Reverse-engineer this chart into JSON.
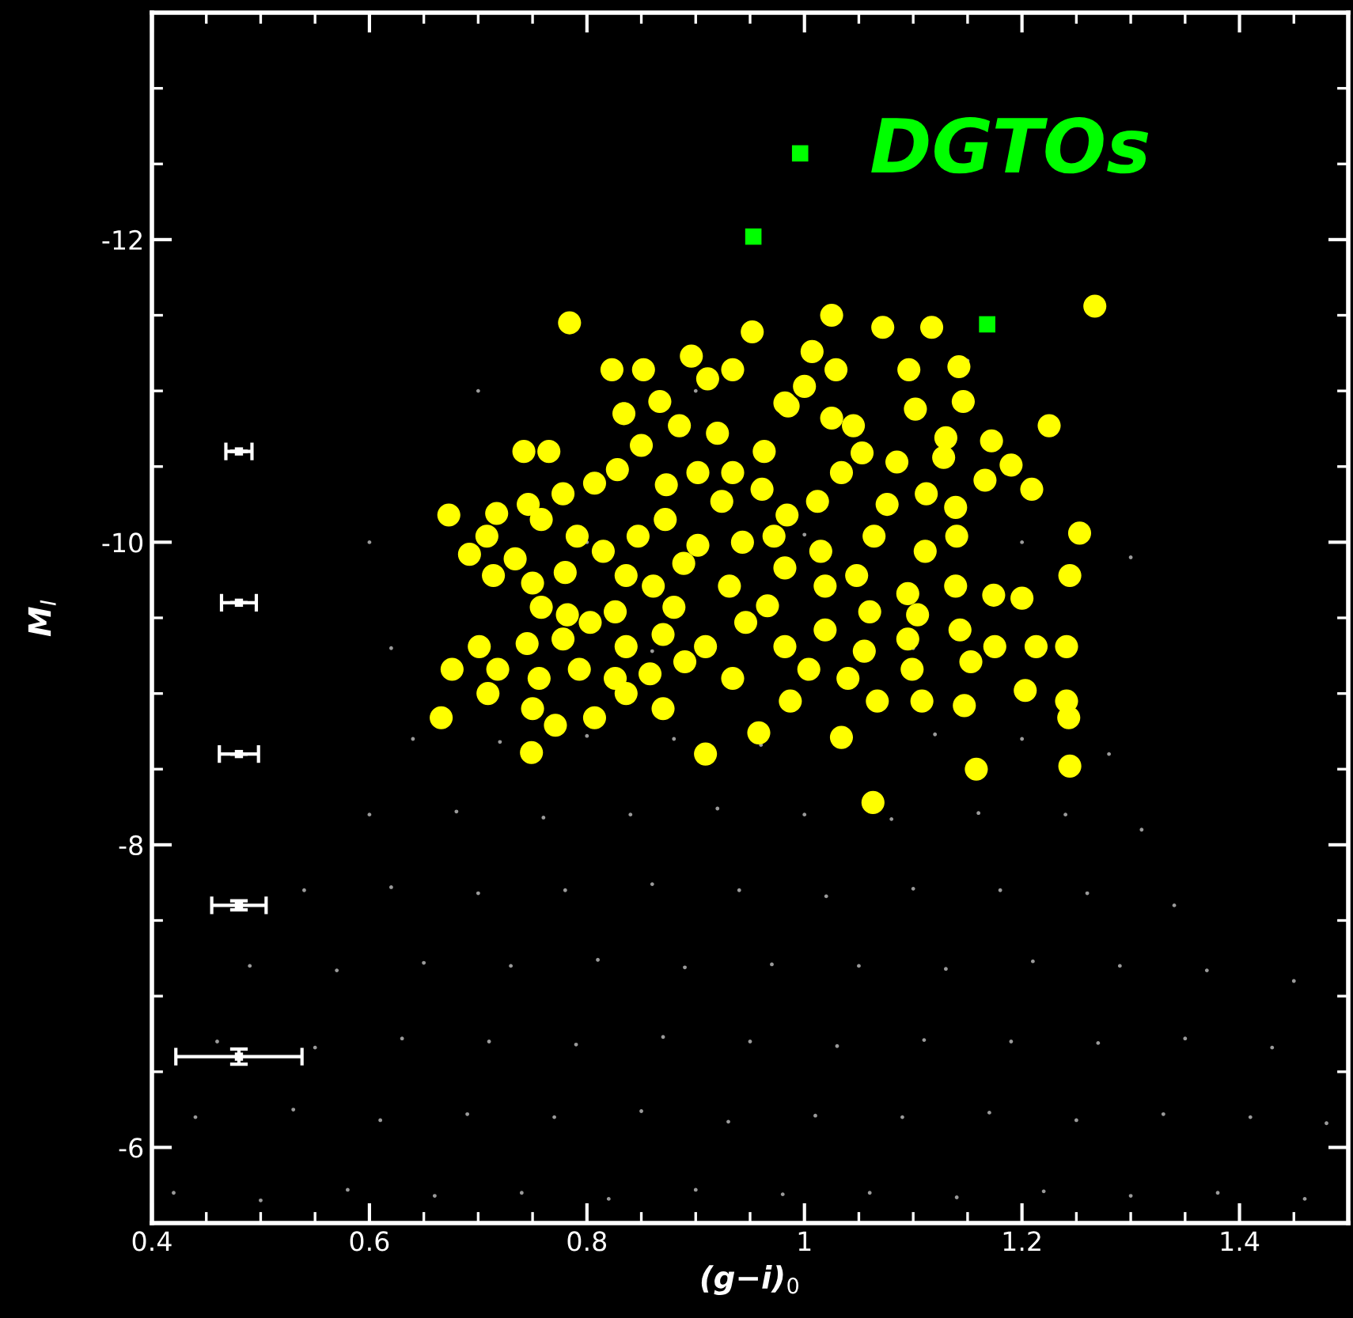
{
  "chart_data": {
    "type": "scatter",
    "xlabel": "(g−i)$_{0}$",
    "ylabel": "M$_{I}$",
    "xlim": [
      0.4,
      1.5
    ],
    "ylim": [
      -5.5,
      -13.5
    ],
    "xticks": [
      0.4,
      0.6,
      0.8,
      1,
      1.2,
      1.4
    ],
    "yticks": [
      -12,
      -10,
      -8,
      -6
    ],
    "grid": false,
    "legend": false,
    "series": [
      {
        "color": "#9a9a9a",
        "marker": "circle",
        "x": [
          0.42,
          0.5,
          0.58,
          0.66,
          0.74,
          0.82,
          0.9,
          0.98,
          1.06,
          1.14,
          1.22,
          1.3,
          1.38,
          1.46,
          0.44,
          0.53,
          0.61,
          0.69,
          0.77,
          0.85,
          0.93,
          1.01,
          1.09,
          1.17,
          1.25,
          1.33,
          1.41,
          1.48,
          0.46,
          0.55,
          0.63,
          0.71,
          0.79,
          0.87,
          0.95,
          1.03,
          1.11,
          1.19,
          1.27,
          1.35,
          1.43,
          0.49,
          0.57,
          0.65,
          0.73,
          0.81,
          0.89,
          0.97,
          1.05,
          1.13,
          1.21,
          1.29,
          1.37,
          1.45,
          0.54,
          0.62,
          0.7,
          0.78,
          0.86,
          0.94,
          1.02,
          1.1,
          1.18,
          1.26,
          1.34,
          0.6,
          0.68,
          0.76,
          0.84,
          0.92,
          1.0,
          1.08,
          1.16,
          1.24,
          1.31,
          0.64,
          0.72,
          0.8,
          0.88,
          0.96,
          1.12,
          1.2,
          1.28,
          0.62,
          0.86,
          1.1,
          0.6,
          0.8,
          1.0,
          1.2,
          1.3,
          0.7,
          0.9,
          1.15
        ],
        "values": [
          -5.7,
          -5.65,
          -5.72,
          -5.68,
          -5.7,
          -5.66,
          -5.72,
          -5.69,
          -5.7,
          -5.67,
          -5.71,
          -5.68,
          -5.7,
          -5.66,
          -6.2,
          -6.25,
          -6.18,
          -6.22,
          -6.2,
          -6.24,
          -6.17,
          -6.21,
          -6.2,
          -6.23,
          -6.18,
          -6.22,
          -6.2,
          -6.16,
          -6.7,
          -6.66,
          -6.72,
          -6.7,
          -6.68,
          -6.73,
          -6.7,
          -6.67,
          -6.71,
          -6.7,
          -6.69,
          -6.72,
          -6.66,
          -7.2,
          -7.17,
          -7.22,
          -7.2,
          -7.24,
          -7.19,
          -7.21,
          -7.2,
          -7.18,
          -7.23,
          -7.2,
          -7.17,
          -7.1,
          -7.7,
          -7.72,
          -7.68,
          -7.7,
          -7.74,
          -7.7,
          -7.66,
          -7.71,
          -7.7,
          -7.68,
          -7.6,
          -8.2,
          -8.22,
          -8.18,
          -8.2,
          -8.24,
          -8.2,
          -8.17,
          -8.21,
          -8.2,
          -8.1,
          -8.7,
          -8.68,
          -8.72,
          -8.7,
          -8.66,
          -8.73,
          -8.7,
          -8.6,
          -9.3,
          -9.28,
          -9.3,
          -10.0,
          -10.0,
          -10.05,
          -10.0,
          -9.9,
          -11.0,
          -11.0,
          -11.2
        ]
      },
      {
        "color": "#ffff00",
        "marker": "circle",
        "x": [
          0.784,
          0.952,
          1.025,
          1.072,
          1.117,
          1.267,
          0.823,
          0.852,
          0.896,
          0.934,
          0.911,
          1.007,
          1.0,
          1.029,
          0.982,
          1.096,
          1.142,
          1.102,
          1.146,
          1.025,
          0.985,
          0.834,
          0.867,
          0.885,
          0.92,
          0.934,
          1.045,
          1.053,
          1.085,
          1.13,
          1.128,
          1.172,
          1.225,
          1.19,
          0.742,
          0.765,
          0.85,
          0.963,
          0.673,
          0.717,
          0.746,
          0.778,
          0.807,
          0.828,
          0.873,
          0.902,
          0.924,
          0.961,
          0.984,
          1.012,
          1.034,
          1.076,
          1.112,
          1.139,
          1.166,
          1.209,
          0.758,
          0.708,
          0.734,
          0.791,
          0.815,
          0.847,
          0.872,
          0.902,
          0.943,
          0.972,
          1.015,
          1.064,
          1.111,
          1.14,
          1.253,
          0.692,
          0.714,
          0.75,
          0.78,
          0.758,
          0.836,
          0.861,
          0.889,
          0.931,
          0.982,
          1.019,
          1.048,
          1.095,
          1.139,
          1.174,
          0.782,
          0.826,
          0.88,
          0.966,
          1.06,
          1.104,
          1.244,
          1.2,
          0.701,
          0.745,
          0.778,
          0.803,
          0.836,
          0.87,
          0.909,
          0.946,
          0.982,
          1.019,
          1.055,
          1.095,
          1.143,
          1.175,
          1.213,
          1.241,
          0.718,
          0.756,
          0.793,
          0.826,
          0.858,
          0.89,
          0.934,
          1.004,
          1.04,
          1.099,
          1.153,
          0.676,
          0.666,
          0.75,
          0.771,
          0.807,
          0.836,
          0.87,
          0.958,
          0.987,
          1.034,
          1.067,
          1.108,
          1.147,
          1.203,
          1.241,
          1.243,
          0.749,
          0.909,
          1.158,
          1.244,
          1.063,
          0.709
        ],
        "values": [
          -11.45,
          -11.39,
          -11.5,
          -11.42,
          -11.42,
          -11.56,
          -11.14,
          -11.14,
          -11.23,
          -11.14,
          -11.08,
          -11.26,
          -11.03,
          -11.14,
          -10.92,
          -11.14,
          -11.16,
          -10.88,
          -10.93,
          -10.82,
          -10.9,
          -10.85,
          -10.93,
          -10.77,
          -10.72,
          -10.46,
          -10.77,
          -10.59,
          -10.53,
          -10.69,
          -10.56,
          -10.67,
          -10.77,
          -10.51,
          -10.6,
          -10.6,
          -10.64,
          -10.6,
          -10.18,
          -10.19,
          -10.25,
          -10.32,
          -10.39,
          -10.48,
          -10.38,
          -10.46,
          -10.27,
          -10.35,
          -10.18,
          -10.27,
          -10.46,
          -10.25,
          -10.32,
          -10.23,
          -10.41,
          -10.35,
          -10.15,
          -10.04,
          -9.89,
          -10.04,
          -9.94,
          -10.04,
          -10.15,
          -9.98,
          -10.0,
          -10.04,
          -9.94,
          -10.04,
          -9.94,
          -10.04,
          -10.06,
          -9.92,
          -9.78,
          -9.73,
          -9.8,
          -9.57,
          -9.78,
          -9.71,
          -9.86,
          -9.71,
          -9.83,
          -9.71,
          -9.78,
          -9.66,
          -9.71,
          -9.65,
          -9.52,
          -9.54,
          -9.57,
          -9.58,
          -9.54,
          -9.52,
          -9.78,
          -9.63,
          -9.31,
          -9.33,
          -9.36,
          -9.47,
          -9.31,
          -9.39,
          -9.31,
          -9.47,
          -9.31,
          -9.42,
          -9.28,
          -9.36,
          -9.42,
          -9.31,
          -9.31,
          -9.31,
          -9.16,
          -9.1,
          -9.16,
          -9.1,
          -9.13,
          -9.21,
          -9.1,
          -9.16,
          -9.1,
          -9.16,
          -9.21,
          -9.16,
          -8.84,
          -8.9,
          -8.79,
          -8.84,
          -9.0,
          -8.9,
          -8.74,
          -8.95,
          -8.71,
          -8.95,
          -8.95,
          -8.92,
          -9.02,
          -8.95,
          -8.84,
          -8.61,
          -8.6,
          -8.5,
          -8.52,
          -8.28,
          -9.0
        ]
      },
      {
        "name": "DGTOs",
        "color": "#00ff00",
        "marker": "square",
        "x": [
          0.996,
          0.953,
          1.168
        ],
        "values": [
          -12.57,
          -12.02,
          -11.44
        ]
      },
      {
        "color": "#ffffff",
        "marker": "square",
        "x": [
          0.48,
          0.48,
          0.48,
          0.48,
          0.48
        ],
        "values": [
          -10.6,
          -9.6,
          -8.6,
          -7.6,
          -6.6
        ],
        "xerrors": [
          0.012,
          0.016,
          0.018,
          0.025,
          0.058
        ],
        "errors": [
          null,
          null,
          null,
          0.03,
          0.05
        ]
      }
    ]
  }
}
